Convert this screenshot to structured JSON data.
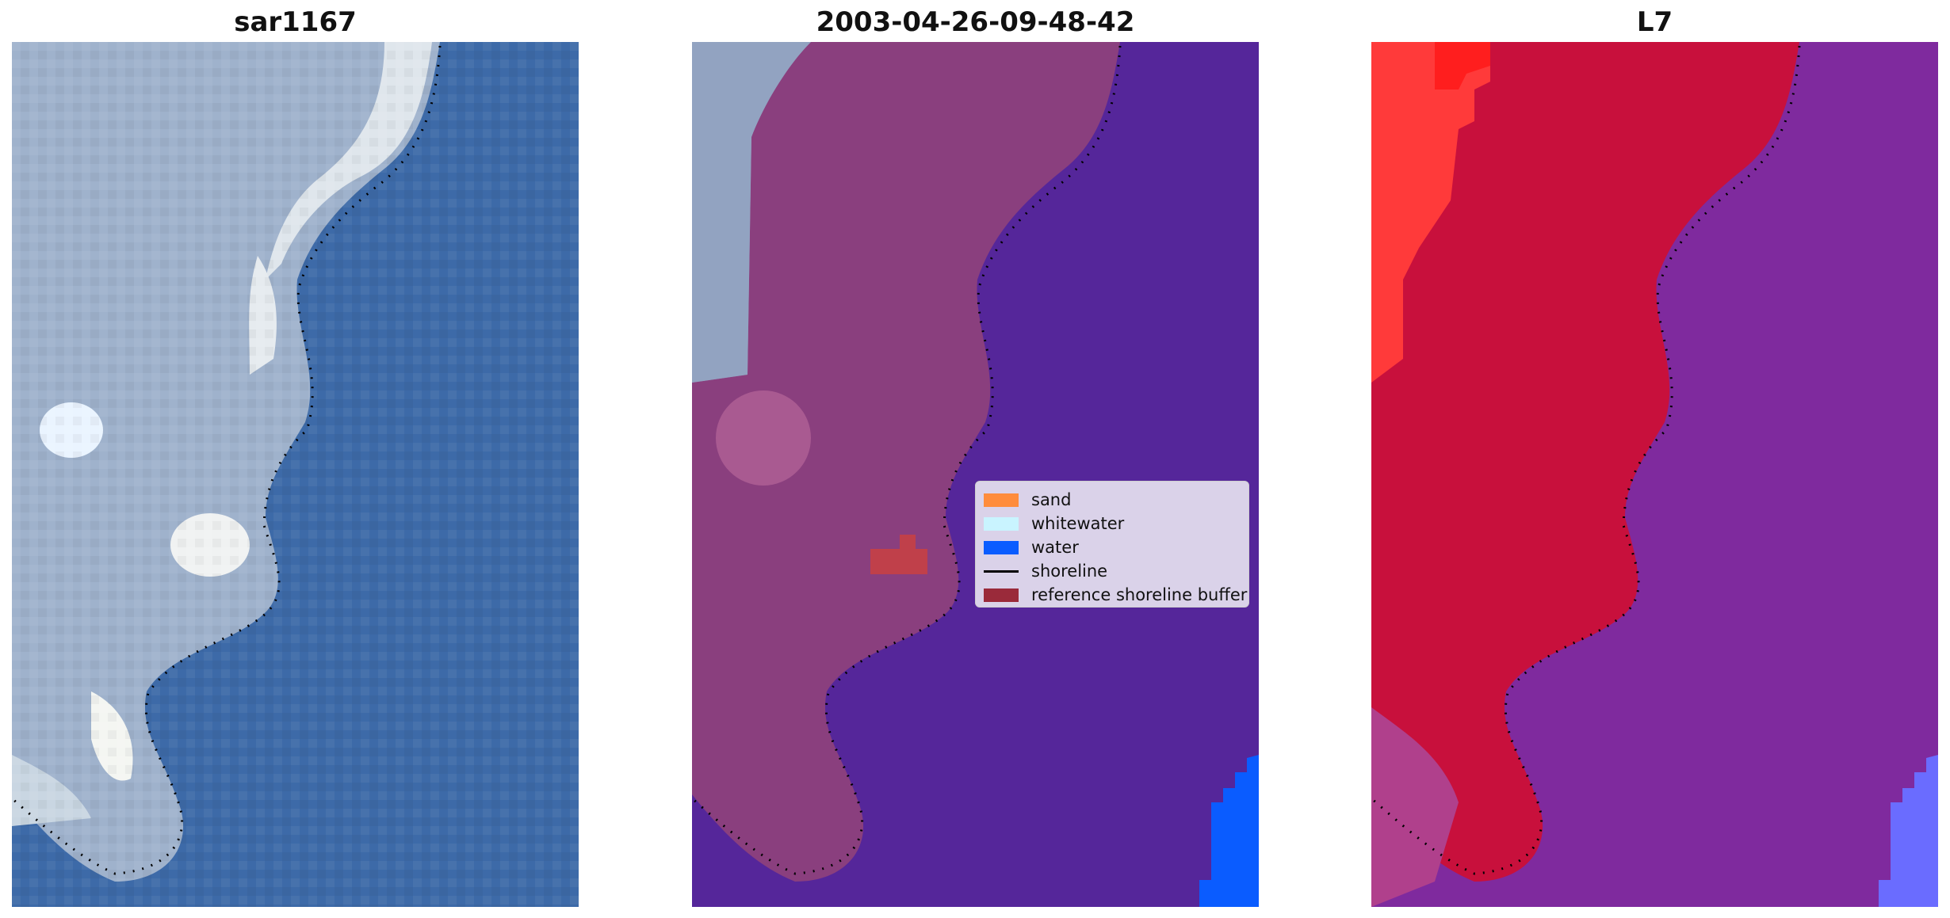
{
  "panels": [
    {
      "title": "sar1167",
      "kind": "rgb"
    },
    {
      "title": "2003-04-26-09-48-42",
      "kind": "classified"
    },
    {
      "title": "L7",
      "kind": "mndwi"
    }
  ],
  "legend": {
    "items": [
      {
        "label": "sand",
        "color": "#ff8c3c",
        "type": "patch"
      },
      {
        "label": "whitewater",
        "color": "#c9f4ff",
        "type": "patch"
      },
      {
        "label": "water",
        "color": "#0a5cff",
        "type": "patch"
      },
      {
        "label": "shoreline",
        "color": "#000000",
        "type": "line"
      },
      {
        "label": "reference shoreline buffer",
        "color": "#9a2a3a",
        "type": "patch"
      }
    ]
  },
  "colors": {
    "rgb_water": "#3d6aa8",
    "rgb_land": "#9fb2cc",
    "rgb_bright": "#e8eef2",
    "classified_water": "#55269a",
    "classified_land": "#8a3f7e",
    "classified_water_class": "#0a5cff",
    "mndwi_land": "#c8103c",
    "mndwi_water": "#7f2a9e",
    "mndwi_high": "#ff3a3a",
    "shoreline_dots": "#000000"
  }
}
